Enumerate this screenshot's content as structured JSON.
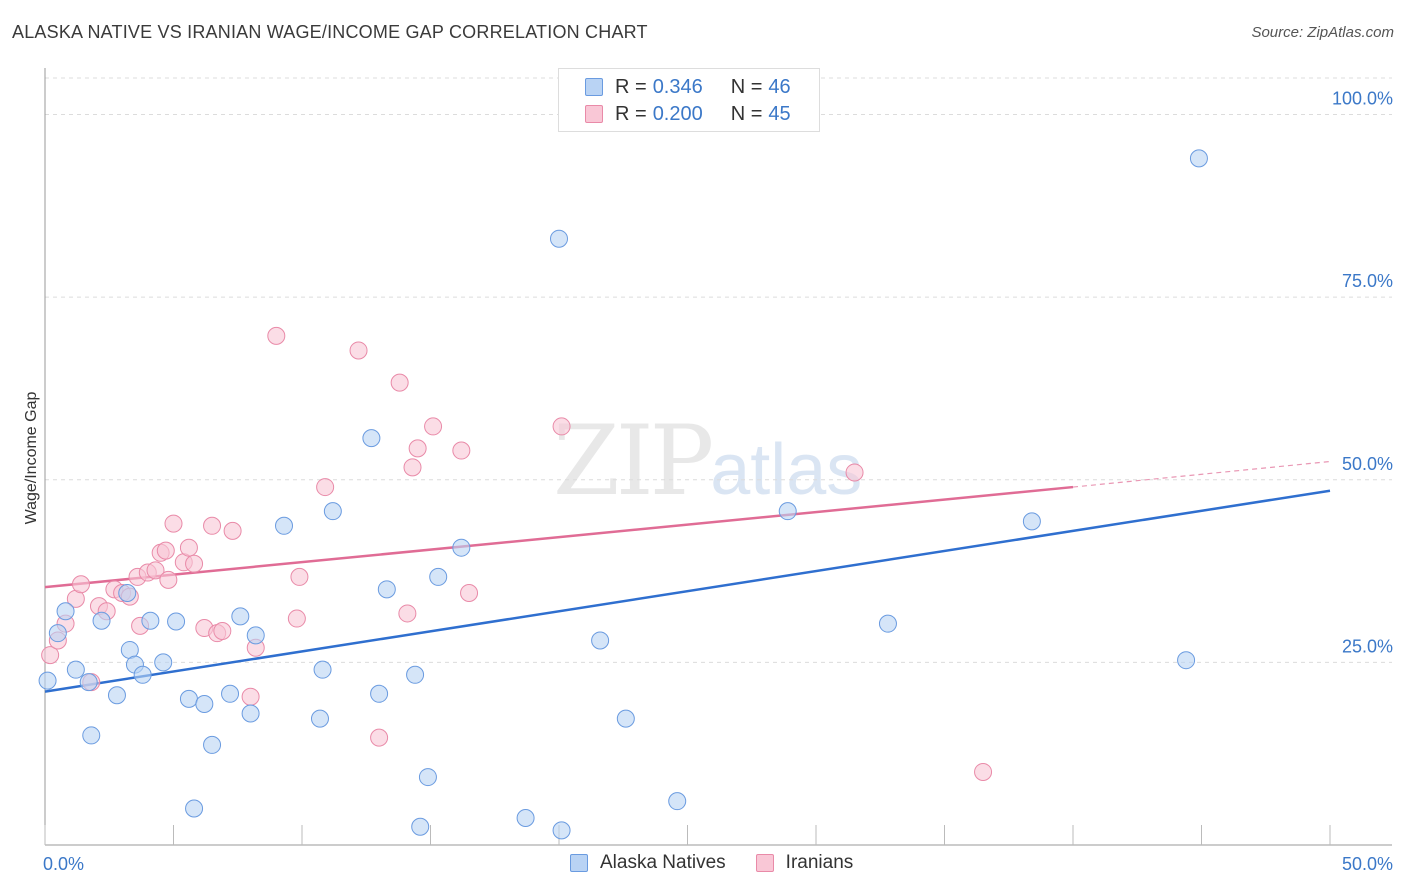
{
  "title": "ALASKA NATIVE VS IRANIAN WAGE/INCOME GAP CORRELATION CHART",
  "source": "Source: ZipAtlas.com",
  "legend": {
    "rows": [
      {
        "r_label": "R = ",
        "r_value": "0.346",
        "n_label": "N = ",
        "n_value": "46"
      },
      {
        "r_label": "R = ",
        "r_value": "0.200",
        "n_label": "N = ",
        "n_value": "45"
      }
    ]
  },
  "watermark": {
    "zip": "ZIP",
    "atlas": "atlas"
  },
  "chart_data": {
    "type": "scatter",
    "title": "ALASKA NATIVE VS IRANIAN WAGE/INCOME GAP CORRELATION CHART",
    "xlabel": "",
    "ylabel": "Wage/Income Gap",
    "xlim": [
      0,
      50
    ],
    "ylim": [
      0,
      105
    ],
    "x_tick_labels": [
      "0.0%",
      "50.0%"
    ],
    "y_ticks": [
      25,
      50,
      75,
      100
    ],
    "y_tick_labels": [
      "25.0%",
      "50.0%",
      "75.0%",
      "100.0%"
    ],
    "grid": true,
    "legend_position": "top-center",
    "colors": {
      "alaska": "#6a9be0",
      "alaska_fill": "#b9d3f4",
      "iranian": "#e98aa8",
      "iranian_fill": "#f9c7d6",
      "alaska_line": "#2f6fcf",
      "iranian_line": "#e06c95"
    },
    "series": [
      {
        "name": "Alaska Natives",
        "trend": {
          "x0": 0,
          "y0": 21,
          "x1": 50,
          "y1": 48.5
        },
        "points": [
          [
            0.1,
            22.5
          ],
          [
            0.5,
            29.0
          ],
          [
            0.8,
            32.0
          ],
          [
            1.2,
            24.0
          ],
          [
            1.7,
            22.3
          ],
          [
            1.8,
            15.0
          ],
          [
            2.2,
            30.7
          ],
          [
            2.8,
            20.5
          ],
          [
            3.2,
            34.5
          ],
          [
            3.3,
            26.7
          ],
          [
            3.5,
            24.7
          ],
          [
            3.8,
            23.3
          ],
          [
            4.1,
            30.7
          ],
          [
            4.6,
            25.0
          ],
          [
            5.1,
            30.6
          ],
          [
            5.6,
            20.0
          ],
          [
            5.8,
            5.0
          ],
          [
            6.2,
            19.3
          ],
          [
            6.5,
            13.7
          ],
          [
            7.2,
            20.7
          ],
          [
            7.6,
            31.3
          ],
          [
            8.0,
            18.0
          ],
          [
            8.2,
            28.7
          ],
          [
            9.3,
            43.7
          ],
          [
            10.7,
            17.3
          ],
          [
            10.8,
            24.0
          ],
          [
            11.2,
            45.7
          ],
          [
            12.7,
            55.7
          ],
          [
            13.0,
            20.7
          ],
          [
            13.3,
            35.0
          ],
          [
            14.4,
            23.3
          ],
          [
            14.6,
            2.5
          ],
          [
            14.9,
            9.3
          ],
          [
            15.3,
            36.7
          ],
          [
            16.2,
            40.7
          ],
          [
            18.7,
            3.7
          ],
          [
            20.0,
            83.0
          ],
          [
            20.1,
            2.0
          ],
          [
            21.6,
            28.0
          ],
          [
            22.6,
            17.3
          ],
          [
            24.6,
            6.0
          ],
          [
            28.9,
            45.7
          ],
          [
            32.8,
            30.3
          ],
          [
            38.4,
            44.3
          ],
          [
            44.4,
            25.3
          ],
          [
            44.9,
            94.0
          ]
        ]
      },
      {
        "name": "Iranians",
        "trend": {
          "x0": 0,
          "y0": 35.3,
          "x1": 40,
          "y1": 49.0,
          "dash_to_x": 50,
          "dash_to_y": 52.5
        },
        "points": [
          [
            0.2,
            26.0
          ],
          [
            0.5,
            28.0
          ],
          [
            0.8,
            30.3
          ],
          [
            1.2,
            33.7
          ],
          [
            1.4,
            35.7
          ],
          [
            1.8,
            22.3
          ],
          [
            2.1,
            32.7
          ],
          [
            2.4,
            32.0
          ],
          [
            2.7,
            35.0
          ],
          [
            3.0,
            34.5
          ],
          [
            3.3,
            34.0
          ],
          [
            3.6,
            36.7
          ],
          [
            3.7,
            30.0
          ],
          [
            4.0,
            37.3
          ],
          [
            4.3,
            37.6
          ],
          [
            4.5,
            40.0
          ],
          [
            4.7,
            40.3
          ],
          [
            4.8,
            36.3
          ],
          [
            5.0,
            44.0
          ],
          [
            5.4,
            38.7
          ],
          [
            5.6,
            40.7
          ],
          [
            5.8,
            38.5
          ],
          [
            6.2,
            29.7
          ],
          [
            6.5,
            43.7
          ],
          [
            6.7,
            29.0
          ],
          [
            6.9,
            29.3
          ],
          [
            7.3,
            43.0
          ],
          [
            8.0,
            20.3
          ],
          [
            8.2,
            27.0
          ],
          [
            9.0,
            69.7
          ],
          [
            9.8,
            31.0
          ],
          [
            9.9,
            36.7
          ],
          [
            10.9,
            49.0
          ],
          [
            12.2,
            67.7
          ],
          [
            13.0,
            14.7
          ],
          [
            13.8,
            63.3
          ],
          [
            14.1,
            31.7
          ],
          [
            14.3,
            51.7
          ],
          [
            14.5,
            54.3
          ],
          [
            15.1,
            57.3
          ],
          [
            16.2,
            54.0
          ],
          [
            16.5,
            34.5
          ],
          [
            20.1,
            57.3
          ],
          [
            31.5,
            51.0
          ],
          [
            36.5,
            10.0
          ]
        ]
      }
    ]
  },
  "bottom_legend": {
    "items": [
      "Alaska Natives",
      "Iranians"
    ]
  }
}
